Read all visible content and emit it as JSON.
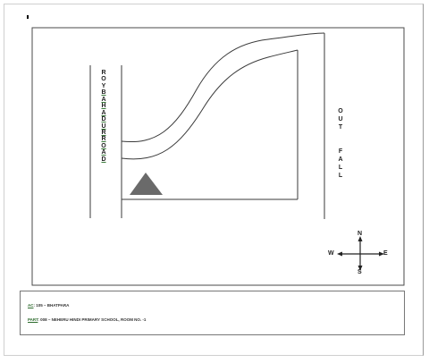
{
  "road_label": {
    "letters": [
      "R",
      "O",
      "Y",
      "B",
      "A",
      "H",
      "A",
      "D",
      "U",
      "R",
      "R",
      "O",
      "A",
      "D"
    ]
  },
  "outfall_label": {
    "words": [
      "OUT",
      "FALL"
    ]
  },
  "compass": {
    "north": "N",
    "south": "S",
    "east": "E",
    "west": "W"
  },
  "footer": {
    "ac_key": "AC",
    "ac_value": ": 105 – BHATPARA",
    "part_key": "PART",
    "part_value": ": 008 – NEHERU HINDI PRIMARY SCHOOL, ROOM NO. -1"
  },
  "colors": {
    "marker_fill": "#6a6a6a",
    "line": "#3a3a3a",
    "label_underline": "#3a7a3a"
  },
  "icons": {
    "polling_station_marker": "triangle-icon",
    "compass": "compass-rose-icon"
  }
}
